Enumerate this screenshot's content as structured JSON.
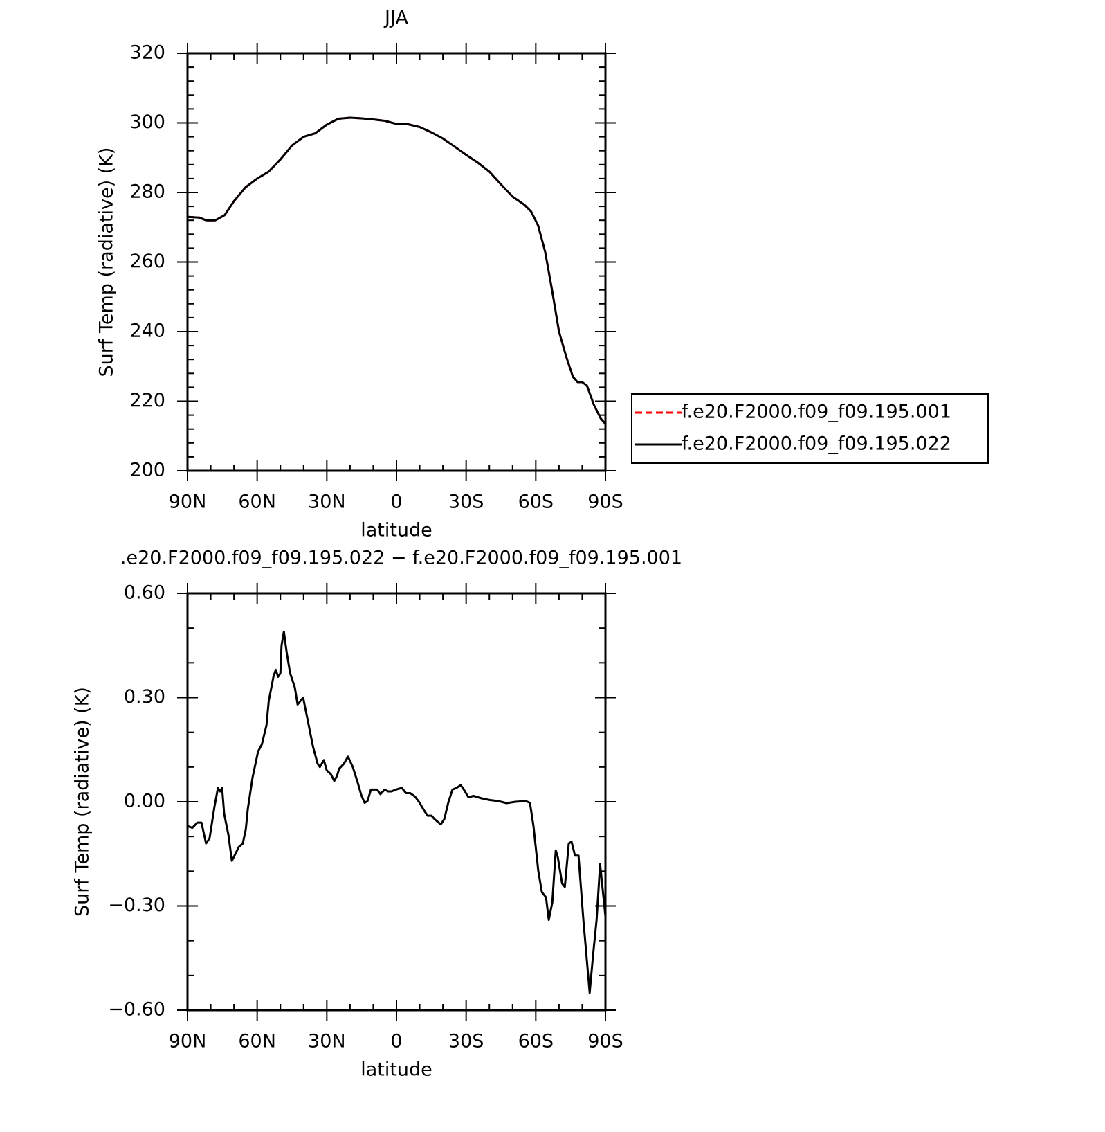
{
  "chart_data": [
    {
      "type": "line",
      "title": "JJA",
      "xlabel": "latitude",
      "ylabel": "Surf Temp (radiative) (K)",
      "x": [
        90,
        85,
        82,
        78,
        74,
        70,
        65,
        60,
        55,
        50,
        45,
        40,
        35,
        30,
        25,
        20,
        15,
        10,
        5,
        0,
        -5,
        -10,
        -15,
        -20,
        -25,
        -30,
        -35,
        -40,
        -45,
        -50,
        -55,
        -58,
        -61,
        -64,
        -67,
        -70,
        -73,
        -76,
        -78,
        -80,
        -82,
        -85,
        -88,
        -90
      ],
      "series": [
        {
          "name": "f.e20.F2000.f09_f09.195.001",
          "color": "#ff0000",
          "dashed": true,
          "values": [
            273,
            272.8,
            272,
            272,
            273.5,
            277.5,
            281.5,
            284,
            286,
            289.5,
            293.5,
            296,
            297,
            299.5,
            301.2,
            301.5,
            301.3,
            301,
            300.6,
            299.7,
            299.6,
            298.8,
            297.3,
            295.5,
            293.2,
            290.8,
            288.6,
            286,
            282.3,
            278.8,
            276.5,
            274.5,
            270.5,
            263,
            252,
            240,
            233,
            227,
            225.5,
            225.5,
            224.5,
            219,
            215,
            213.5
          ]
        },
        {
          "name": "f.e20.F2000.f09_f09.195.022",
          "color": "#000000",
          "dashed": false,
          "values": [
            273,
            272.8,
            272,
            272,
            273.5,
            277.5,
            281.5,
            284,
            286,
            289.5,
            293.5,
            296,
            297,
            299.5,
            301.2,
            301.5,
            301.3,
            301,
            300.6,
            299.7,
            299.6,
            298.8,
            297.3,
            295.5,
            293.2,
            290.8,
            288.6,
            286,
            282.3,
            278.8,
            276.5,
            274.5,
            270.5,
            263,
            252,
            240,
            233,
            227,
            225.5,
            225.5,
            224.5,
            219,
            215,
            213.5
          ]
        }
      ],
      "xlim": [
        90,
        -90
      ],
      "xticks": [
        {
          "value": 90,
          "label": "90N"
        },
        {
          "value": 60,
          "label": "60N"
        },
        {
          "value": 30,
          "label": "30N"
        },
        0,
        {
          "value": -30,
          "label": "30S"
        },
        {
          "value": -60,
          "label": "60S"
        },
        {
          "value": -90,
          "label": "90S"
        }
      ],
      "ylim": [
        200,
        320
      ],
      "yticks": [
        200,
        220,
        240,
        260,
        280,
        300,
        320
      ],
      "legend": "right"
    },
    {
      "type": "line",
      "title": ".e20.F2000.f09_f09.195.022 − f.e20.F2000.f09_f09.195.001",
      "xlabel": "latitude",
      "ylabel": "Surf Temp (radiative) (K)",
      "x": [
        90,
        87.9,
        85.8,
        84,
        82,
        80.5,
        78.4,
        76.9,
        76,
        75.1,
        74.2,
        72.4,
        70.9,
        67.9,
        66.2,
        64.9,
        64,
        62,
        59.6,
        58,
        56,
        55,
        53,
        52,
        51,
        50,
        49.5,
        48.5,
        47.3,
        45.8,
        43.8,
        42.6,
        40.2,
        38.1,
        36,
        34,
        33,
        31.3,
        30,
        28.3,
        26.8,
        25.6,
        24.7,
        22.6,
        20.9,
        18.8,
        16.7,
        15.2,
        13.7,
        12.5,
        11,
        8.3,
        6.9,
        5.1,
        3.6,
        2.1,
        0.3,
        -2.3,
        -4.1,
        -5.9,
        -8,
        -9.7,
        -11.9,
        -13.4,
        -15.1,
        -16.4,
        -19.1,
        -20.6,
        -22.3,
        -24.1,
        -25.9,
        -27.7,
        -29.2,
        -31,
        -33.1,
        -36.7,
        -40.3,
        -43.9,
        -47.4,
        -51.3,
        -55.7,
        -57.5,
        -59,
        -61.1,
        -62.6,
        -64.4,
        -65.6,
        -67.1,
        -68.6,
        -69.5,
        -71.3,
        -72.5,
        -74.2,
        -75.4,
        -76.9,
        -78.4,
        -80.5,
        -83.2,
        -84.7,
        -86.2,
        -87.7,
        -90
      ],
      "values": [
        -0.07,
        -0.075,
        -0.06,
        -0.06,
        -0.12,
        -0.105,
        -0.015,
        0.04,
        0.03,
        0.04,
        -0.035,
        -0.095,
        -0.17,
        -0.13,
        -0.12,
        -0.08,
        -0.02,
        0.07,
        0.145,
        0.165,
        0.22,
        0.29,
        0.36,
        0.38,
        0.36,
        0.37,
        0.45,
        0.49,
        0.43,
        0.37,
        0.33,
        0.28,
        0.3,
        0.23,
        0.16,
        0.11,
        0.1,
        0.12,
        0.09,
        0.08,
        0.06,
        0.075,
        0.095,
        0.11,
        0.13,
        0.1,
        0.055,
        0.02,
        -0.003,
        0.002,
        0.035,
        0.035,
        0.022,
        0.035,
        0.03,
        0.03,
        0.035,
        0.04,
        0.025,
        0.025,
        0.015,
        0,
        -0.025,
        -0.04,
        -0.04,
        -0.05,
        -0.065,
        -0.05,
        -0.003,
        0.035,
        0.04,
        0.048,
        0.033,
        0.013,
        0.017,
        0.01,
        0.005,
        0.002,
        -0.004,
        0,
        0.002,
        -0.003,
        -0.07,
        -0.2,
        -0.26,
        -0.275,
        -0.34,
        -0.29,
        -0.14,
        -0.16,
        -0.235,
        -0.245,
        -0.12,
        -0.115,
        -0.155,
        -0.155,
        -0.34,
        -0.55,
        -0.44,
        -0.34,
        -0.18,
        -0.33
      ],
      "color": "#000000",
      "xlim": [
        90,
        -90
      ],
      "xticks": [
        {
          "value": 90,
          "label": "90N"
        },
        {
          "value": 60,
          "label": "60N"
        },
        {
          "value": 30,
          "label": "30N"
        },
        0,
        {
          "value": -30,
          "label": "30S"
        },
        {
          "value": -60,
          "label": "60S"
        },
        {
          "value": -90,
          "label": "90S"
        }
      ],
      "ylim": [
        -0.6,
        0.6
      ],
      "yticks": [
        {
          "value": -0.6,
          "label": "−0.60"
        },
        {
          "value": -0.3,
          "label": "−0.30"
        },
        {
          "value": 0,
          "label": "0.00"
        },
        {
          "value": 0.3,
          "label": "0.30"
        },
        {
          "value": 0.6,
          "label": "0.60"
        }
      ]
    }
  ]
}
